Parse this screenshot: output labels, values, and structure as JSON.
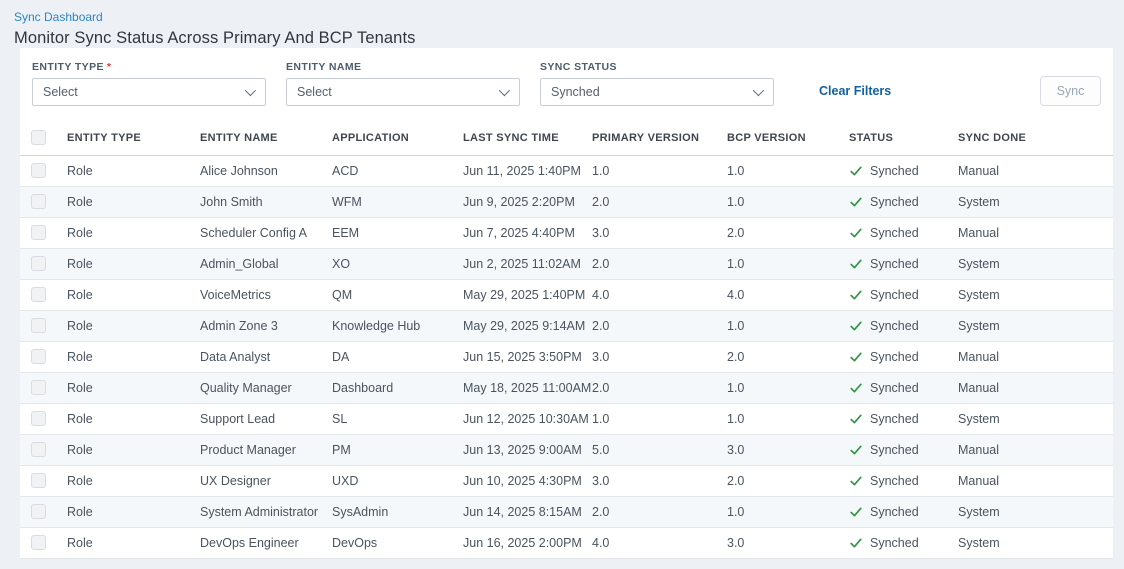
{
  "page": {
    "breadcrumb": "Sync Dashboard",
    "title": "Monitor Sync Status Across Primary And BCP Tenants"
  },
  "filters": {
    "fields": [
      {
        "id": "entity-type",
        "label": "ENTITY TYPE",
        "required": true,
        "value": "Select"
      },
      {
        "id": "entity-name",
        "label": "ENTITY NAME",
        "required": false,
        "value": "Select"
      },
      {
        "id": "sync-status",
        "label": "SYNC STATUS",
        "required": false,
        "value": "Synched"
      }
    ],
    "clear_label": "Clear Filters",
    "sync_label": "Sync"
  },
  "table": {
    "columns": [
      "ENTITY TYPE",
      "ENTITY NAME",
      "APPLICATION",
      "LAST SYNC TIME",
      "PRIMARY VERSION",
      "BCP VERSION",
      "STATUS",
      "SYNC DONE"
    ],
    "rows": [
      {
        "entity_type": "Role",
        "entity_name": "Alice Johnson",
        "application": "ACD",
        "last_sync_time": "Jun 11, 2025 1:40PM",
        "primary_version": "1.0",
        "bcp_version": "1.0",
        "status": "Synched",
        "sync_done": "Manual"
      },
      {
        "entity_type": "Role",
        "entity_name": "John Smith",
        "application": "WFM",
        "last_sync_time": "Jun 9, 2025 2:20PM",
        "primary_version": "2.0",
        "bcp_version": "1.0",
        "status": "Synched",
        "sync_done": "System"
      },
      {
        "entity_type": "Role",
        "entity_name": "Scheduler Config A",
        "application": "EEM",
        "last_sync_time": "Jun 7, 2025 4:40PM",
        "primary_version": "3.0",
        "bcp_version": "2.0",
        "status": "Synched",
        "sync_done": "Manual"
      },
      {
        "entity_type": "Role",
        "entity_name": "Admin_Global",
        "application": "XO",
        "last_sync_time": "Jun 2, 2025 11:02AM",
        "primary_version": "2.0",
        "bcp_version": "1.0",
        "status": "Synched",
        "sync_done": "System"
      },
      {
        "entity_type": "Role",
        "entity_name": "VoiceMetrics",
        "application": "QM",
        "last_sync_time": "May 29, 2025 1:40PM",
        "primary_version": "4.0",
        "bcp_version": "4.0",
        "status": "Synched",
        "sync_done": "System"
      },
      {
        "entity_type": "Role",
        "entity_name": "Admin Zone 3",
        "application": "Knowledge Hub",
        "last_sync_time": "May 29, 2025 9:14AM",
        "primary_version": "2.0",
        "bcp_version": "1.0",
        "status": "Synched",
        "sync_done": "System"
      },
      {
        "entity_type": "Role",
        "entity_name": "Data Analyst",
        "application": "DA",
        "last_sync_time": "Jun 15, 2025 3:50PM",
        "primary_version": "3.0",
        "bcp_version": "2.0",
        "status": "Synched",
        "sync_done": "Manual"
      },
      {
        "entity_type": "Role",
        "entity_name": "Quality Manager",
        "application": "Dashboard",
        "last_sync_time": "May 18, 2025 11:00AM",
        "primary_version": "2.0",
        "bcp_version": "1.0",
        "status": "Synched",
        "sync_done": "Manual"
      },
      {
        "entity_type": "Role",
        "entity_name": "Support Lead",
        "application": "SL",
        "last_sync_time": "Jun 12, 2025 10:30AM",
        "primary_version": "1.0",
        "bcp_version": "1.0",
        "status": "Synched",
        "sync_done": "System"
      },
      {
        "entity_type": "Role",
        "entity_name": "Product Manager",
        "application": "PM",
        "last_sync_time": "Jun 13, 2025 9:00AM",
        "primary_version": "5.0",
        "bcp_version": "3.0",
        "status": "Synched",
        "sync_done": "Manual"
      },
      {
        "entity_type": "Role",
        "entity_name": "UX Designer",
        "application": "UXD",
        "last_sync_time": "Jun 10, 2025 4:30PM",
        "primary_version": "3.0",
        "bcp_version": "2.0",
        "status": "Synched",
        "sync_done": "Manual"
      },
      {
        "entity_type": "Role",
        "entity_name": "System Administrator",
        "application": "SysAdmin",
        "last_sync_time": "Jun 14, 2025 8:15AM",
        "primary_version": "2.0",
        "bcp_version": "1.0",
        "status": "Synched",
        "sync_done": "System"
      },
      {
        "entity_type": "Role",
        "entity_name": "DevOps Engineer",
        "application": "DevOps",
        "last_sync_time": "Jun 16, 2025 2:00PM",
        "primary_version": "4.0",
        "bcp_version": "3.0",
        "status": "Synched",
        "sync_done": "System"
      }
    ]
  },
  "colors": {
    "breadcrumb_blue": "#2e86c1",
    "clear_filters_blue": "#1261a0",
    "status_check_green": "#2e9642",
    "page_background": "#edf1f6",
    "alt_row_background": "#f5f8fa"
  }
}
